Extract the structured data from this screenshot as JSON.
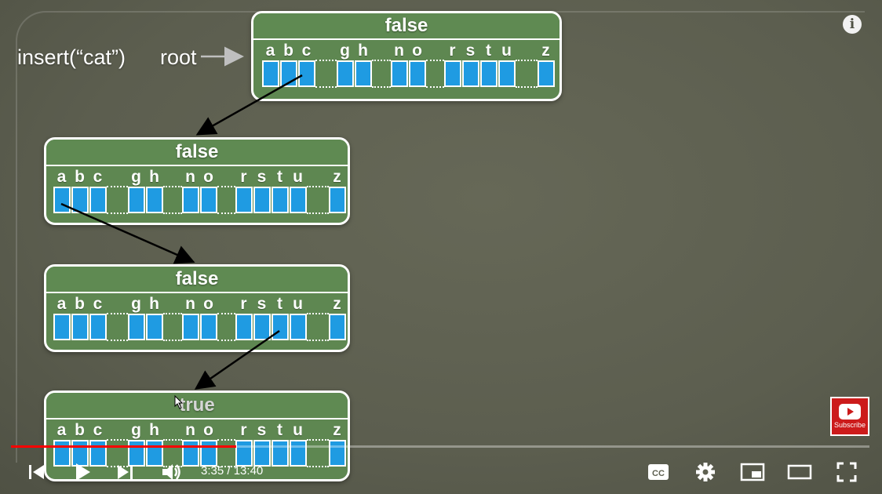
{
  "slide": {
    "insert_label": "insert(“cat”)",
    "root_label": "root",
    "nodes": [
      {
        "flag": "false"
      },
      {
        "flag": "false"
      },
      {
        "flag": "false"
      },
      {
        "flag": "true"
      }
    ],
    "letters": [
      "a",
      "b",
      "c",
      "g",
      "h",
      "n",
      "o",
      "r",
      "s",
      "t",
      "u",
      "z"
    ]
  },
  "player": {
    "current_time": "3:35",
    "separator": " / ",
    "duration": "13:40",
    "progress_fraction": 0.262,
    "subscribe_label": "Subscribe",
    "info_label": "i",
    "progress_color": "#ff0000",
    "icons": [
      "previous-icon",
      "play-icon",
      "next-icon",
      "volume-icon",
      "captions-icon",
      "settings-icon",
      "miniplayer-icon",
      "theater-icon",
      "fullscreen-icon"
    ]
  },
  "colors": {
    "node_green": "#5e8751",
    "cell_blue": "#1f9be2",
    "background": "#5f6151"
  }
}
